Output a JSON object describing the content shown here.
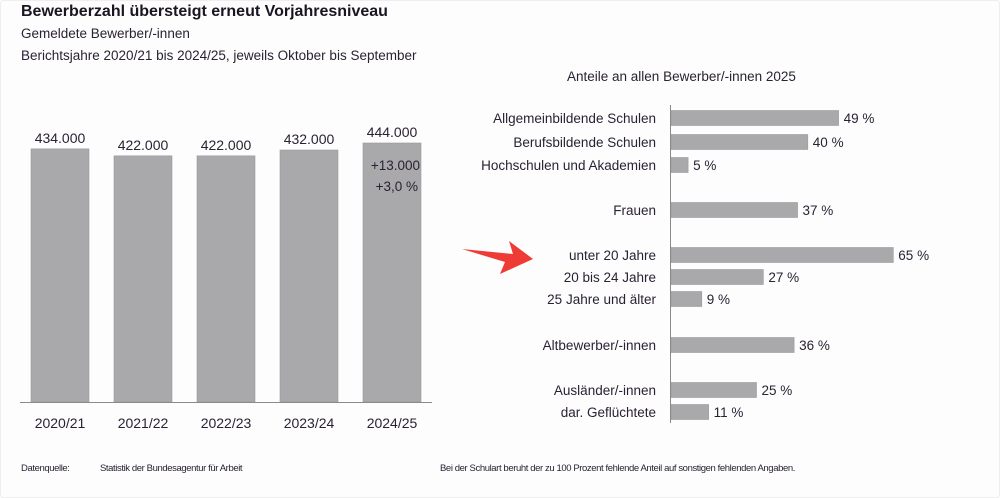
{
  "header": {
    "title": "Bewerberzahl übersteigt erneut Vorjahresniveau",
    "subtitle": "Gemeldete Bewerber/-innen",
    "period": "Berichtsjahre 2020/21 bis 2024/25, jeweils Oktober bis September"
  },
  "footer": {
    "source_label": "Datenquelle:",
    "source_value": "Statistik der Bundesagentur für Arbeit",
    "note": "Bei der Schulart beruht der zu 100 Prozent fehlende Anteil auf sonstigen fehlenden Angaben."
  },
  "colors": {
    "bar": "#a9a9ab",
    "bar_edge": "#9a9a9c",
    "axis": "#8a8a8e",
    "text": "#2a2233",
    "arrow": "#ef3b36"
  },
  "annotation_icon": "red-arrow-icon",
  "chart_data": [
    {
      "type": "bar",
      "title": "Gemeldete Bewerber/-innen",
      "xlabel": "",
      "ylabel": "",
      "ylim": [
        0,
        444000
      ],
      "categories": [
        "2020/21",
        "2021/22",
        "2022/23",
        "2023/24",
        "2024/25"
      ],
      "values": [
        434000,
        422000,
        422000,
        432000,
        444000
      ],
      "value_labels": [
        "434.000",
        "422.000",
        "422.000",
        "432.000",
        "444.000"
      ],
      "change_annotation": {
        "absolute": "+13.000",
        "percent": "+3,0 %"
      },
      "grid": false
    },
    {
      "type": "bar",
      "orientation": "horizontal",
      "title": "Anteile an allen Bewerber/-innen 2025",
      "xlim": [
        0,
        100
      ],
      "unit": "%",
      "grid": false,
      "groups": [
        {
          "items": [
            {
              "label": "Allgemeinbildende Schulen",
              "value": 49,
              "value_label": "49 %"
            },
            {
              "label": "Berufsbildende Schulen",
              "value": 40,
              "value_label": "40 %"
            },
            {
              "label": "Hochschulen und Akademien",
              "value": 5,
              "value_label": "5 %"
            }
          ]
        },
        {
          "items": [
            {
              "label": "Frauen",
              "value": 37,
              "value_label": "37 %"
            }
          ]
        },
        {
          "items": [
            {
              "label": "unter 20 Jahre",
              "value": 65,
              "value_label": "65 %",
              "highlighted": true
            },
            {
              "label": "20 bis 24 Jahre",
              "value": 27,
              "value_label": "27 %"
            },
            {
              "label": "25 Jahre und älter",
              "value": 9,
              "value_label": "9 %"
            }
          ]
        },
        {
          "items": [
            {
              "label": "Altbewerber/-innen",
              "value": 36,
              "value_label": "36 %"
            }
          ]
        },
        {
          "items": [
            {
              "label": "Ausländer/-innen",
              "value": 25,
              "value_label": "25 %"
            },
            {
              "label": "dar. Geflüchtete",
              "value": 11,
              "value_label": "11 %"
            }
          ]
        }
      ]
    }
  ]
}
